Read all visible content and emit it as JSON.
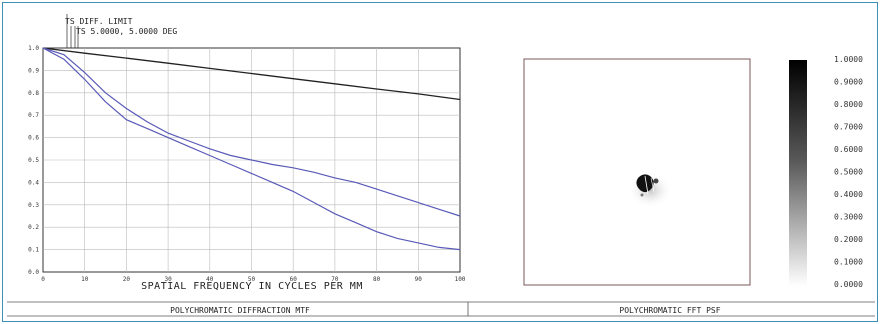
{
  "colors": {
    "frame": "#3f8fb8",
    "mtf_curve": "#5a5ab8",
    "diff_limit": "#222222",
    "grid": "#bbbbbb"
  },
  "mtf": {
    "header": [
      "TS DIFF. LIMIT",
      "TS 5.0000, 5.0000 DEG"
    ],
    "caption": "POLYCHROMATIC DIFFRACTION MTF"
  },
  "psf": {
    "caption": "POLYCHROMATIC FFT PSF",
    "colorbar_labels": [
      "1.0000",
      "0.9000",
      "0.8000",
      "0.7000",
      "0.6000",
      "0.5000",
      "0.4000",
      "0.3000",
      "0.2000",
      "0.1000",
      "0.0000"
    ]
  },
  "chart_data": [
    {
      "type": "line",
      "title": "POLYCHROMATIC DIFFRACTION MTF",
      "xlabel": "SPATIAL FREQUENCY IN CYCLES PER MM",
      "ylabel": "",
      "xlim": [
        0,
        100
      ],
      "ylim": [
        0,
        1.0
      ],
      "grid": true,
      "x_ticks": [
        "0",
        "10",
        "20",
        "30",
        "40",
        "50",
        "60",
        "70",
        "80",
        "90",
        "100"
      ],
      "y_ticks": [
        "0.0",
        "0.1",
        "0.2",
        "0.3",
        "0.4",
        "0.5",
        "0.6",
        "0.7",
        "0.8",
        "0.9",
        "1.0"
      ],
      "series": [
        {
          "name": "TS DIFF. LIMIT",
          "x": [
            0,
            10,
            20,
            30,
            40,
            50,
            60,
            70,
            80,
            90,
            100
          ],
          "y": [
            1.0,
            0.977,
            0.955,
            0.932,
            0.909,
            0.886,
            0.863,
            0.84,
            0.817,
            0.795,
            0.77
          ]
        },
        {
          "name": "TS 5.0000, 5.0000 DEG",
          "x": [
            0,
            5,
            10,
            15,
            20,
            25,
            30,
            35,
            40,
            45,
            50,
            55,
            60,
            65,
            70,
            75,
            80,
            85,
            90,
            95,
            100
          ],
          "y": [
            1.0,
            0.97,
            0.89,
            0.8,
            0.73,
            0.67,
            0.62,
            0.585,
            0.55,
            0.52,
            0.5,
            0.48,
            0.465,
            0.445,
            0.42,
            0.4,
            0.37,
            0.34,
            0.31,
            0.28,
            0.25
          ]
        },
        {
          "name": "",
          "x": [
            0,
            5,
            10,
            15,
            20,
            25,
            30,
            35,
            40,
            45,
            50,
            55,
            60,
            65,
            70,
            75,
            80,
            85,
            90,
            95,
            100
          ],
          "y": [
            1.0,
            0.95,
            0.86,
            0.76,
            0.68,
            0.64,
            0.6,
            0.56,
            0.52,
            0.48,
            0.44,
            0.4,
            0.36,
            0.31,
            0.26,
            0.22,
            0.18,
            0.15,
            0.13,
            0.11,
            0.1
          ]
        }
      ]
    },
    {
      "type": "heatmap",
      "title": "POLYCHROMATIC FFT PSF",
      "colorscale": "white-to-black",
      "range": [
        0.0,
        1.0
      ],
      "colorbar_ticks": [
        "1.0000",
        "0.9000",
        "0.8000",
        "0.7000",
        "0.6000",
        "0.5000",
        "0.4000",
        "0.3000",
        "0.2000",
        "0.1000",
        "0.0000"
      ]
    }
  ]
}
